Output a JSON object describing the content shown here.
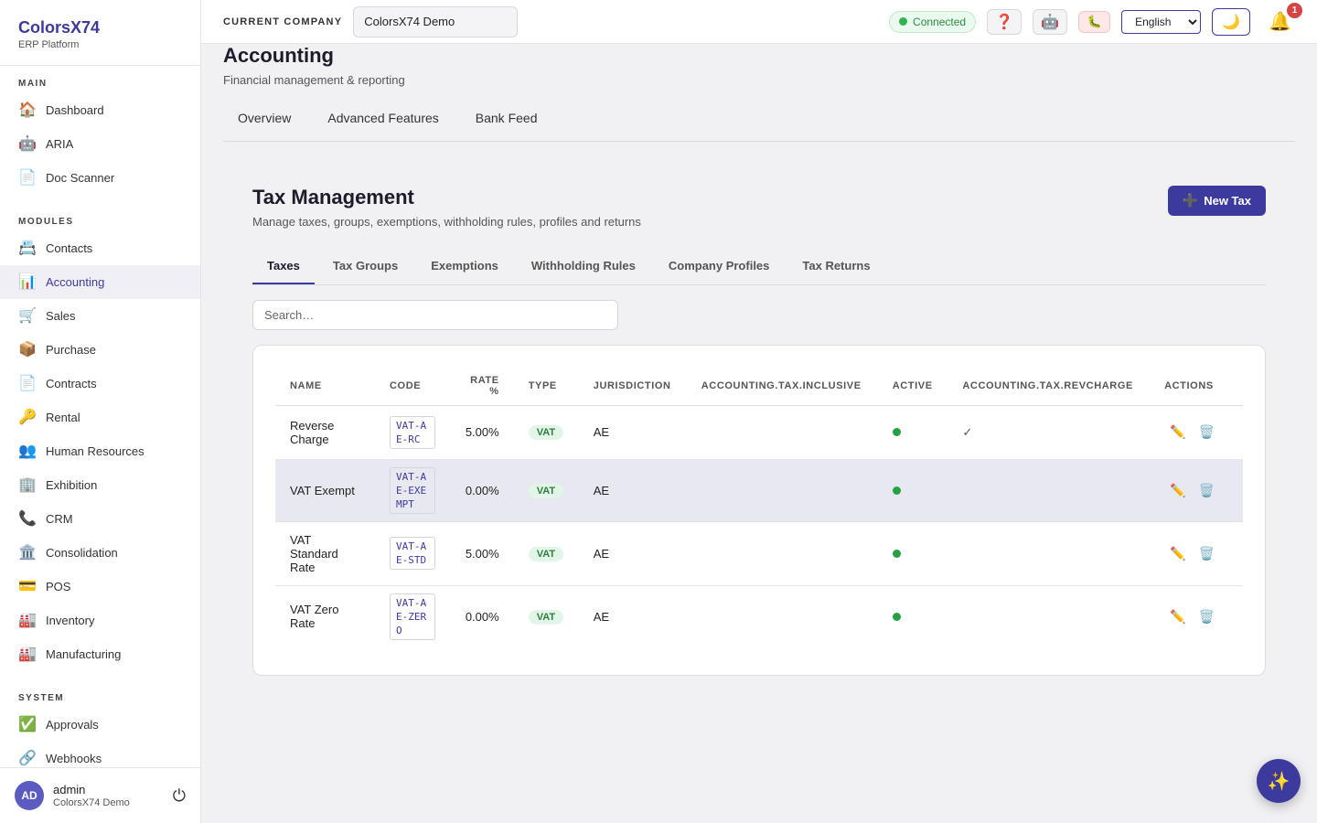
{
  "brand": {
    "name": "ColorsX74",
    "sub": "ERP Platform"
  },
  "sidebar": {
    "sections": [
      {
        "title": "MAIN",
        "items": [
          {
            "icon": "🏠",
            "label": "Dashboard"
          },
          {
            "icon": "🤖",
            "label": "ARIA"
          },
          {
            "icon": "📄",
            "label": "Doc Scanner"
          }
        ]
      },
      {
        "title": "MODULES",
        "items": [
          {
            "icon": "📇",
            "label": "Contacts"
          },
          {
            "icon": "📊",
            "label": "Accounting",
            "active": true
          },
          {
            "icon": "🛒",
            "label": "Sales"
          },
          {
            "icon": "📦",
            "label": "Purchase"
          },
          {
            "icon": "📄",
            "label": "Contracts"
          },
          {
            "icon": "🔑",
            "label": "Rental"
          },
          {
            "icon": "👥",
            "label": "Human Resources"
          },
          {
            "icon": "🏢",
            "label": "Exhibition"
          },
          {
            "icon": "📞",
            "label": "CRM"
          },
          {
            "icon": "🏛️",
            "label": "Consolidation"
          },
          {
            "icon": "💳",
            "label": "POS"
          },
          {
            "icon": "🏭",
            "label": "Inventory"
          },
          {
            "icon": "🏭",
            "label": "Manufacturing"
          }
        ]
      },
      {
        "title": "SYSTEM",
        "items": [
          {
            "icon": "✅",
            "label": "Approvals"
          },
          {
            "icon": "🔗",
            "label": "Webhooks"
          }
        ]
      }
    ]
  },
  "user": {
    "initials": "AD",
    "name": "admin",
    "company": "ColorsX74 Demo"
  },
  "topbar": {
    "company_label": "CURRENT COMPANY",
    "company_value": "ColorsX74 Demo",
    "status": "Connected",
    "language": "English",
    "notifications": "1"
  },
  "page": {
    "title": "Accounting",
    "subtitle": "Financial management & reporting",
    "tabs": [
      "Overview",
      "Advanced Features",
      "Bank Feed"
    ]
  },
  "panel": {
    "title": "Tax Management",
    "subtitle": "Manage taxes, groups, exemptions, withholding rules, profiles and returns",
    "new_button": "New Tax",
    "tabs": [
      "Taxes",
      "Tax Groups",
      "Exemptions",
      "Withholding Rules",
      "Company Profiles",
      "Tax Returns"
    ],
    "search_placeholder": "Search…"
  },
  "table": {
    "columns": [
      "NAME",
      "CODE",
      "RATE %",
      "TYPE",
      "JURISDICTION",
      "ACCOUNTING.TAX.INCLUSIVE",
      "ACTIVE",
      "ACCOUNTING.TAX.REVCHARGE",
      "ACTIONS"
    ],
    "rows": [
      {
        "name": "Reverse Charge",
        "code": "VAT-AE-RC",
        "rate": "5.00%",
        "type": "VAT",
        "jurisdiction": "AE",
        "inclusive": "",
        "active": true,
        "revcharge": "✓"
      },
      {
        "name": "VAT Exempt",
        "code": "VAT-AE-EXEMPT",
        "rate": "0.00%",
        "type": "VAT",
        "jurisdiction": "AE",
        "inclusive": "",
        "active": true,
        "revcharge": "",
        "highlight": true
      },
      {
        "name": "VAT Standard Rate",
        "code": "VAT-AE-STD",
        "rate": "5.00%",
        "type": "VAT",
        "jurisdiction": "AE",
        "inclusive": "",
        "active": true,
        "revcharge": ""
      },
      {
        "name": "VAT Zero Rate",
        "code": "VAT-AE-ZERO",
        "rate": "0.00%",
        "type": "VAT",
        "jurisdiction": "AE",
        "inclusive": "",
        "active": true,
        "revcharge": ""
      }
    ]
  }
}
